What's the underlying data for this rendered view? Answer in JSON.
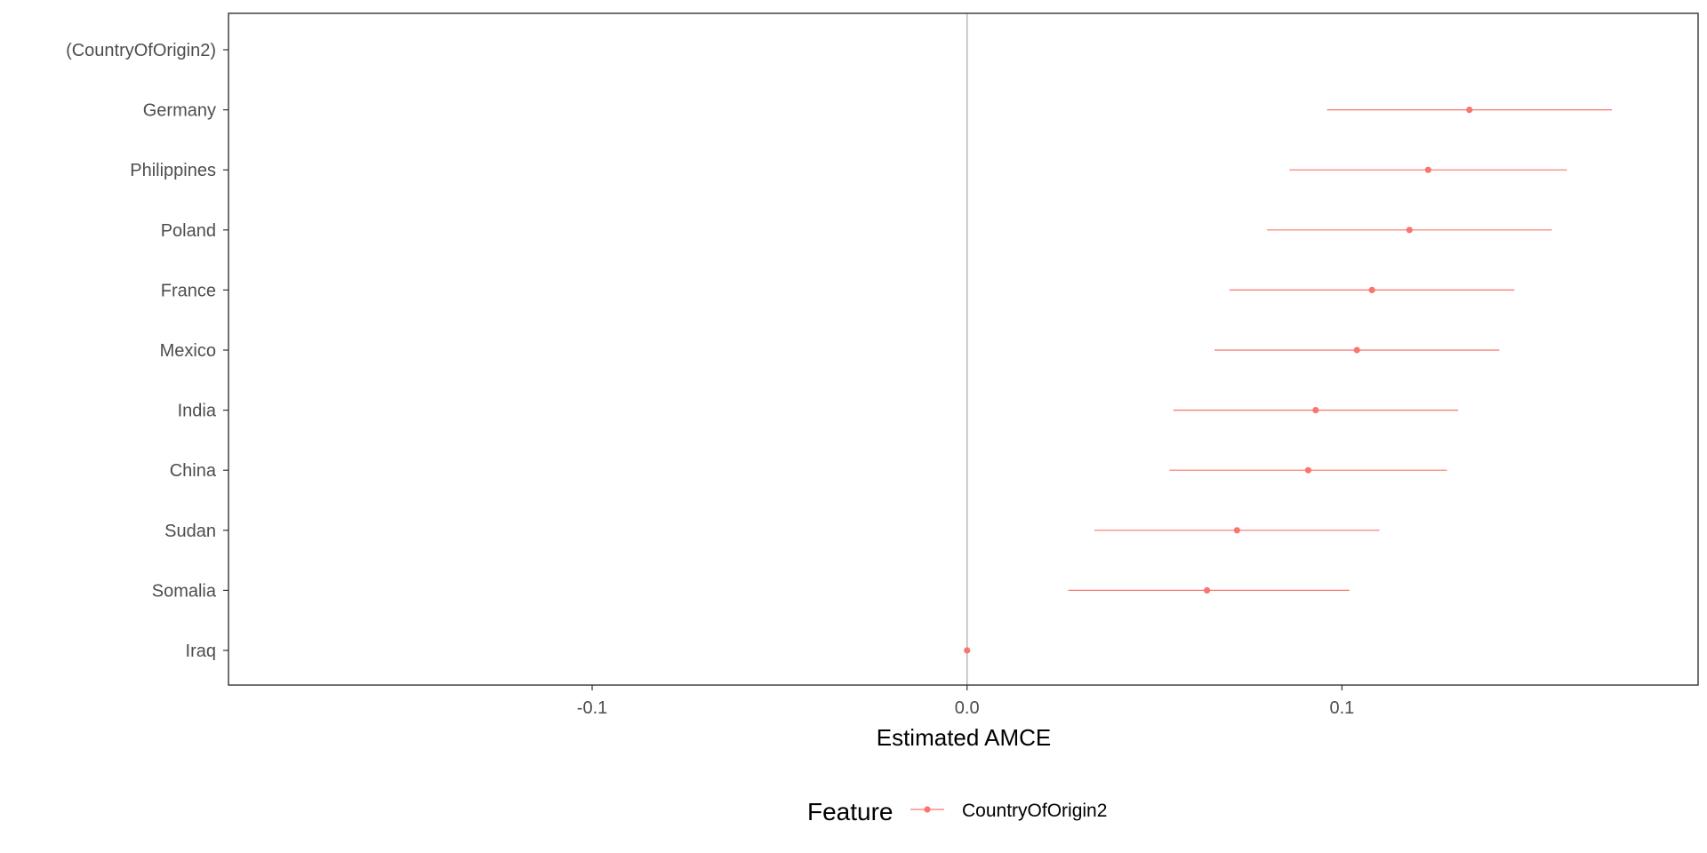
{
  "chart_data": {
    "type": "scatter",
    "subtype": "coefficient-plot-with-error-bars",
    "xlabel": "Estimated AMCE",
    "ylabel": "",
    "xlim": [
      -0.197,
      0.195
    ],
    "x_ticks": [
      -0.1,
      0.0,
      0.1
    ],
    "x_tick_labels": [
      "-0.1",
      "0.0",
      "0.1"
    ],
    "reference_line_x": 0,
    "grid": false,
    "legend": {
      "title": "Feature",
      "position": "bottom",
      "entries": [
        "CountryOfOrigin2"
      ]
    },
    "color": "#F8766D",
    "categories": [
      "(CountryOfOrigin2)",
      "Germany",
      "Philippines",
      "Poland",
      "France",
      "Mexico",
      "India",
      "China",
      "Sudan",
      "Somalia",
      "Iraq"
    ],
    "points": [
      {
        "label": "(CountryOfOrigin2)",
        "estimate": null,
        "lower": null,
        "upper": null
      },
      {
        "label": "Germany",
        "estimate": 0.134,
        "lower": 0.096,
        "upper": 0.172
      },
      {
        "label": "Philippines",
        "estimate": 0.123,
        "lower": 0.086,
        "upper": 0.16
      },
      {
        "label": "Poland",
        "estimate": 0.118,
        "lower": 0.08,
        "upper": 0.156
      },
      {
        "label": "France",
        "estimate": 0.108,
        "lower": 0.07,
        "upper": 0.146
      },
      {
        "label": "Mexico",
        "estimate": 0.104,
        "lower": 0.066,
        "upper": 0.142
      },
      {
        "label": "India",
        "estimate": 0.093,
        "lower": 0.055,
        "upper": 0.131
      },
      {
        "label": "China",
        "estimate": 0.091,
        "lower": 0.054,
        "upper": 0.128
      },
      {
        "label": "Sudan",
        "estimate": 0.072,
        "lower": 0.034,
        "upper": 0.11
      },
      {
        "label": "Somalia",
        "estimate": 0.064,
        "lower": 0.027,
        "upper": 0.102
      },
      {
        "label": "Iraq",
        "estimate": 0.0,
        "lower": 0.0,
        "upper": 0.0
      }
    ]
  }
}
